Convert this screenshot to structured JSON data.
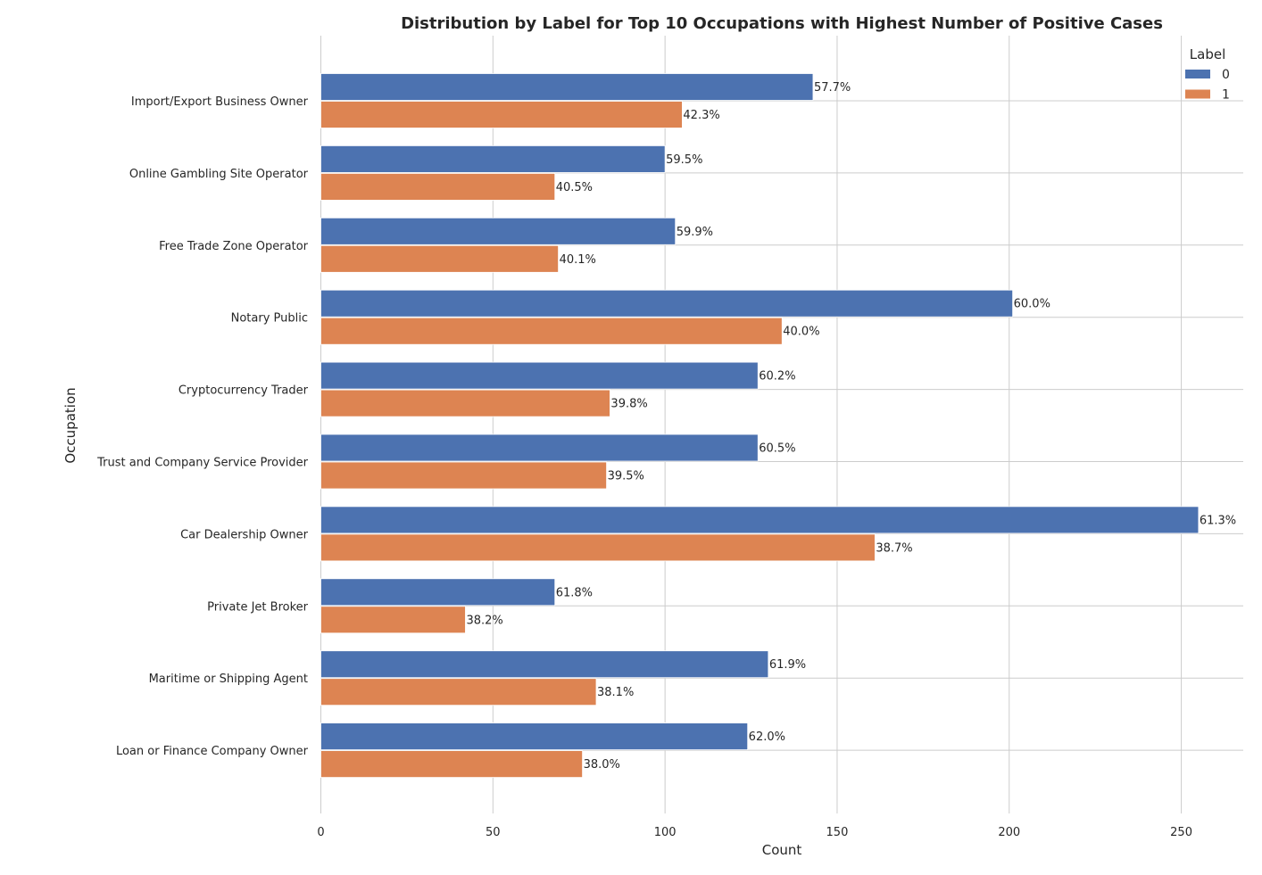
{
  "chart_data": {
    "type": "bar",
    "orientation": "horizontal",
    "title": "Distribution by Label for Top 10 Occupations with Highest Number of Positive Cases",
    "xlabel": "Count",
    "ylabel": "Occupation",
    "xlim": [
      0,
      268
    ],
    "x_ticks": [
      0,
      50,
      100,
      150,
      200,
      250
    ],
    "grid": true,
    "legend": {
      "title": "Label",
      "placement": "top-right"
    },
    "categories": [
      "Import/Export Business Owner",
      "Online Gambling Site Operator",
      "Free Trade Zone Operator",
      "Notary Public",
      "Cryptocurrency Trader",
      "Trust and Company Service Provider",
      "Car Dealership Owner",
      "Private Jet Broker",
      "Maritime or Shipping Agent",
      "Loan or Finance Company Owner"
    ],
    "series": [
      {
        "name": "0",
        "color": "#4c72b0",
        "values": [
          143,
          100,
          103,
          201,
          127,
          127,
          255,
          68,
          130,
          124
        ],
        "labels": [
          "57.7%",
          "59.5%",
          "59.9%",
          "60.0%",
          "60.2%",
          "60.5%",
          "61.3%",
          "61.8%",
          "61.9%",
          "62.0%"
        ]
      },
      {
        "name": "1",
        "color": "#dd8452",
        "values": [
          105,
          68,
          69,
          134,
          84,
          83,
          161,
          42,
          80,
          76
        ],
        "labels": [
          "42.3%",
          "40.5%",
          "40.1%",
          "40.0%",
          "39.8%",
          "39.5%",
          "38.7%",
          "38.2%",
          "38.1%",
          "38.0%"
        ]
      }
    ]
  }
}
